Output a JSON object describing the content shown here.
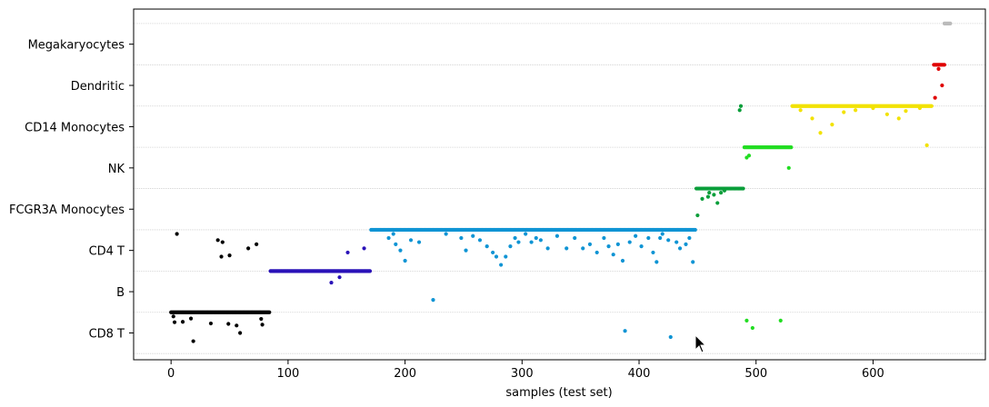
{
  "chart_data": {
    "type": "scatter",
    "title": "",
    "xlabel": "samples (test set)",
    "ylabel": "",
    "xlim": [
      -32,
      696
    ],
    "ylim": [
      -0.65,
      7.85
    ],
    "xticks": [
      0,
      100,
      200,
      300,
      400,
      500,
      600
    ],
    "categories": [
      "CD8 T",
      "B",
      "CD4 T",
      "FCGR3A Monocytes",
      "NK",
      "CD14 Monocytes",
      "Dendritic",
      "Megakaryocytes"
    ],
    "grid": "horizontal",
    "series": [
      {
        "color": "#000000",
        "true_class": "CD8 T",
        "x_range": [
          0,
          84
        ],
        "main_value": 0.5,
        "outliers": [
          {
            "x": 2,
            "y": 0.4
          },
          {
            "x": 3,
            "y": 0.26
          },
          {
            "x": 5,
            "y": 2.4
          },
          {
            "x": 10,
            "y": 0.27
          },
          {
            "x": 17,
            "y": 0.35
          },
          {
            "x": 19,
            "y": -0.2
          },
          {
            "x": 34,
            "y": 0.23
          },
          {
            "x": 40,
            "y": 2.25
          },
          {
            "x": 43,
            "y": 1.85
          },
          {
            "x": 44,
            "y": 2.2
          },
          {
            "x": 49,
            "y": 0.22
          },
          {
            "x": 50,
            "y": 1.88
          },
          {
            "x": 56,
            "y": 0.18
          },
          {
            "x": 59,
            "y": 0.0
          },
          {
            "x": 66,
            "y": 2.05
          },
          {
            "x": 73,
            "y": 2.15
          },
          {
            "x": 77,
            "y": 0.34
          },
          {
            "x": 78,
            "y": 0.2
          }
        ]
      },
      {
        "color": "#2a12b8",
        "true_class": "B",
        "x_range": [
          85,
          170
        ],
        "main_value": 1.5,
        "outliers": [
          {
            "x": 137,
            "y": 1.22
          },
          {
            "x": 144,
            "y": 1.35
          },
          {
            "x": 151,
            "y": 1.95
          },
          {
            "x": 165,
            "y": 2.05
          }
        ]
      },
      {
        "color": "#0f94d4",
        "true_class": "CD4 T",
        "x_range": [
          171,
          448
        ],
        "main_value": 2.5,
        "outliers": [
          {
            "x": 186,
            "y": 2.3
          },
          {
            "x": 190,
            "y": 2.4
          },
          {
            "x": 192,
            "y": 2.15
          },
          {
            "x": 196,
            "y": 2.0
          },
          {
            "x": 200,
            "y": 1.75
          },
          {
            "x": 205,
            "y": 2.25
          },
          {
            "x": 212,
            "y": 2.2
          },
          {
            "x": 224,
            "y": 0.8
          },
          {
            "x": 235,
            "y": 2.4
          },
          {
            "x": 248,
            "y": 2.3
          },
          {
            "x": 252,
            "y": 2.0
          },
          {
            "x": 258,
            "y": 2.35
          },
          {
            "x": 264,
            "y": 2.25
          },
          {
            "x": 270,
            "y": 2.1
          },
          {
            "x": 275,
            "y": 1.95
          },
          {
            "x": 278,
            "y": 1.85
          },
          {
            "x": 282,
            "y": 1.65
          },
          {
            "x": 286,
            "y": 1.85
          },
          {
            "x": 290,
            "y": 2.1
          },
          {
            "x": 294,
            "y": 2.3
          },
          {
            "x": 297,
            "y": 2.2
          },
          {
            "x": 303,
            "y": 2.4
          },
          {
            "x": 308,
            "y": 2.2
          },
          {
            "x": 312,
            "y": 2.3
          },
          {
            "x": 316,
            "y": 2.25
          },
          {
            "x": 322,
            "y": 2.05
          },
          {
            "x": 330,
            "y": 2.35
          },
          {
            "x": 338,
            "y": 2.05
          },
          {
            "x": 345,
            "y": 2.3
          },
          {
            "x": 352,
            "y": 2.05
          },
          {
            "x": 358,
            "y": 2.15
          },
          {
            "x": 364,
            "y": 1.95
          },
          {
            "x": 370,
            "y": 2.3
          },
          {
            "x": 374,
            "y": 2.1
          },
          {
            "x": 378,
            "y": 1.9
          },
          {
            "x": 382,
            "y": 2.15
          },
          {
            "x": 386,
            "y": 1.75
          },
          {
            "x": 388,
            "y": 0.05
          },
          {
            "x": 392,
            "y": 2.2
          },
          {
            "x": 397,
            "y": 2.35
          },
          {
            "x": 402,
            "y": 2.1
          },
          {
            "x": 408,
            "y": 2.3
          },
          {
            "x": 412,
            "y": 1.95
          },
          {
            "x": 415,
            "y": 1.72
          },
          {
            "x": 418,
            "y": 2.3
          },
          {
            "x": 420,
            "y": 2.4
          },
          {
            "x": 425,
            "y": 2.25
          },
          {
            "x": 427,
            "y": -0.1
          },
          {
            "x": 432,
            "y": 2.2
          },
          {
            "x": 435,
            "y": 2.05
          },
          {
            "x": 440,
            "y": 2.15
          },
          {
            "x": 443,
            "y": 2.3
          },
          {
            "x": 446,
            "y": 1.72
          }
        ]
      },
      {
        "color": "#0a9e3a",
        "true_class": "FCGR3A Monocytes",
        "x_range": [
          449,
          489
        ],
        "main_value": 3.5,
        "outliers": [
          {
            "x": 450,
            "y": 2.85
          },
          {
            "x": 454,
            "y": 3.25
          },
          {
            "x": 459,
            "y": 3.3
          },
          {
            "x": 460,
            "y": 3.4
          },
          {
            "x": 464,
            "y": 3.35
          },
          {
            "x": 467,
            "y": 3.15
          },
          {
            "x": 470,
            "y": 3.4
          },
          {
            "x": 473,
            "y": 3.45
          },
          {
            "x": 486,
            "y": 5.4
          },
          {
            "x": 487,
            "y": 5.5
          }
        ]
      },
      {
        "color": "#22dd22",
        "true_class": "NK",
        "x_range": [
          490,
          530
        ],
        "main_value": 4.5,
        "outliers": [
          {
            "x": 492,
            "y": 4.25
          },
          {
            "x": 494,
            "y": 4.3
          },
          {
            "x": 492,
            "y": 0.3
          },
          {
            "x": 497,
            "y": 0.12
          },
          {
            "x": 521,
            "y": 0.3
          },
          {
            "x": 528,
            "y": 4.0
          }
        ]
      },
      {
        "color": "#f2e200",
        "true_class": "CD14 Monocytes",
        "x_range": [
          531,
          650
        ],
        "main_value": 5.5,
        "outliers": [
          {
            "x": 538,
            "y": 5.4
          },
          {
            "x": 548,
            "y": 5.2
          },
          {
            "x": 555,
            "y": 4.85
          },
          {
            "x": 565,
            "y": 5.05
          },
          {
            "x": 575,
            "y": 5.35
          },
          {
            "x": 585,
            "y": 5.4
          },
          {
            "x": 600,
            "y": 5.45
          },
          {
            "x": 612,
            "y": 5.3
          },
          {
            "x": 622,
            "y": 5.2
          },
          {
            "x": 628,
            "y": 5.38
          },
          {
            "x": 640,
            "y": 5.45
          },
          {
            "x": 646,
            "y": 4.55
          }
        ]
      },
      {
        "color": "#e00000",
        "true_class": "Dendritic",
        "x_range": [
          652,
          661
        ],
        "main_value": 6.5,
        "outliers": [
          {
            "x": 653,
            "y": 5.7
          },
          {
            "x": 656,
            "y": 6.4
          },
          {
            "x": 659,
            "y": 6.0
          }
        ]
      },
      {
        "color": "#bbbbbb",
        "true_class": "Megakaryocytes",
        "x_range": [
          661,
          666
        ],
        "main_value": 7.5,
        "outliers": []
      }
    ]
  }
}
